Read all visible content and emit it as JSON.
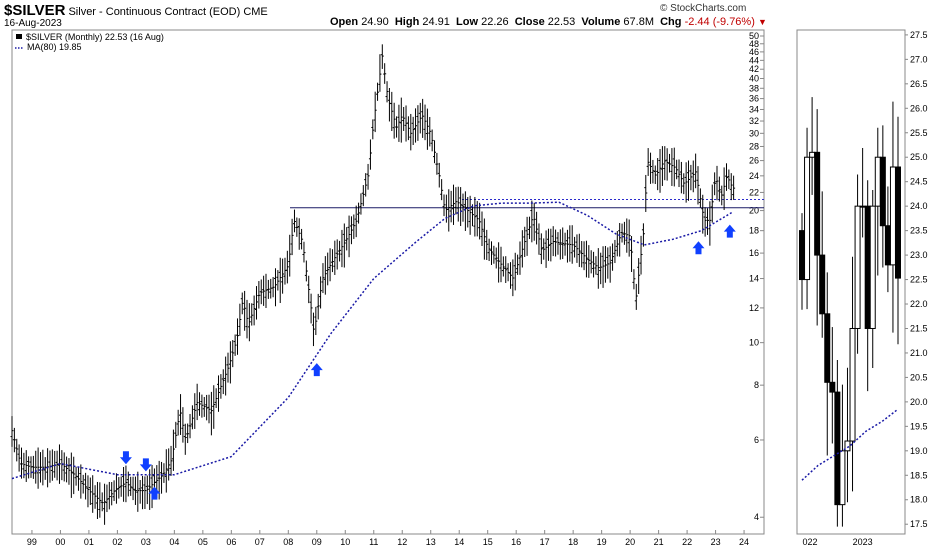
{
  "header": {
    "symbol": "$SILVER",
    "description": "Silver - Continuous Contract (EOD)",
    "exchange": "CME",
    "date": "16-Aug-2023",
    "logo": "© StockCharts.com",
    "open_label": "Open",
    "open": "24.90",
    "high_label": "High",
    "high": "24.91",
    "low_label": "Low",
    "low": "22.26",
    "close_label": "Close",
    "close": "22.53",
    "volume_label": "Volume",
    "volume": "67.8M",
    "chg_label": "Chg",
    "chg": "-2.44 (-9.76%)",
    "chg_color": "#c00000"
  },
  "legend": {
    "series1": "$SILVER (Monthly) 22.53 (16 Aug)",
    "series2": "MA(80) 19.85"
  },
  "colors": {
    "price": "#000000",
    "ma": "#1a1aa6",
    "arrow": "#1040ff",
    "hline": "#1a1a66"
  },
  "chart_data": [
    {
      "type": "line",
      "title": "$SILVER Monthly (log scale)",
      "scale": "log",
      "ylim": [
        3.8,
        50
      ],
      "y_ticks": [
        4,
        6,
        8,
        10,
        12,
        14,
        16,
        18,
        20,
        22,
        24,
        26,
        28,
        30,
        32,
        34,
        36,
        38,
        40,
        42,
        44,
        46,
        48,
        50
      ],
      "x_ticks": [
        "99",
        "00",
        "01",
        "02",
        "03",
        "04",
        "05",
        "06",
        "07",
        "08",
        "09",
        "10",
        "11",
        "12",
        "13",
        "14",
        "15",
        "16",
        "17",
        "18",
        "19",
        "20",
        "21",
        "22",
        "23",
        "24"
      ],
      "xlim": [
        1998.3,
        2024.7
      ],
      "series": [
        {
          "name": "$SILVER (Monthly)",
          "x": [
            1998.3,
            1998.6,
            1999,
            1999.5,
            2000,
            2000.5,
            2001,
            2001.5,
            2001.9,
            2002.3,
            2002.6,
            2003,
            2003.3,
            2003.6,
            2003.9,
            2004.2,
            2004.4,
            2004.8,
            2005.3,
            2005.9,
            2006.2,
            2006.4,
            2006.6,
            2007,
            2007.5,
            2008,
            2008.2,
            2008.5,
            2008.8,
            2008.9,
            2009.2,
            2009.6,
            2010,
            2010.4,
            2010.8,
            2011,
            2011.3,
            2011.5,
            2011.8,
            2012,
            2012.3,
            2012.7,
            2013,
            2013.3,
            2013.5,
            2013.9,
            2014.3,
            2014.7,
            2015,
            2015.5,
            2015.9,
            2016.3,
            2016.6,
            2016.9,
            2017.3,
            2017.7,
            2018,
            2018.5,
            2018.9,
            2019.3,
            2019.7,
            2020,
            2020.2,
            2020.5,
            2020.6,
            2020.9,
            2021.2,
            2021.6,
            2021.9,
            2022.3,
            2022.6,
            2022.8,
            2023,
            2023.2,
            2023.4,
            2023.6
          ],
          "y": [
            6.3,
            5.3,
            5.2,
            5.2,
            5.3,
            5.0,
            4.6,
            4.3,
            4.6,
            4.8,
            4.6,
            4.6,
            4.8,
            5.0,
            5.4,
            7.0,
            6.0,
            7.3,
            7.0,
            8.8,
            10.2,
            12.5,
            11.0,
            13.0,
            13.4,
            15.0,
            19.0,
            17.0,
            12.0,
            10.5,
            14.0,
            15.5,
            17.0,
            19.0,
            24.0,
            32.0,
            45.0,
            36.0,
            31.0,
            33.0,
            30.0,
            33.0,
            30.0,
            24.0,
            20.0,
            21.0,
            20.0,
            19.0,
            16.5,
            15.0,
            14.0,
            17.0,
            19.5,
            16.2,
            17.0,
            16.8,
            16.7,
            15.5,
            14.8,
            15.2,
            17.8,
            17.5,
            12.5,
            18.5,
            26.0,
            24.0,
            26.0,
            25.0,
            23.0,
            24.5,
            19.0,
            19.0,
            24.0,
            21.5,
            24.0,
            22.5
          ]
        },
        {
          "name": "MA(80)",
          "x": [
            1998.3,
            2000,
            2002,
            2004,
            2006,
            2008,
            2009.5,
            2011,
            2012.5,
            2013.5,
            2014.5,
            2015.5,
            2016.5,
            2017.5,
            2018.5,
            2019.5,
            2020.5,
            2021.5,
            2022.5,
            2023.6
          ],
          "y": [
            4.9,
            5.3,
            5.0,
            5.0,
            5.5,
            7.5,
            10.5,
            14.0,
            17.0,
            19.2,
            20.5,
            20.8,
            20.8,
            20.9,
            19.5,
            17.7,
            16.7,
            17.2,
            18.0,
            19.85
          ]
        }
      ],
      "horizontal_lines": [
        {
          "y": 20.3,
          "style": "solid"
        },
        {
          "y": 21.2,
          "style": "dotted"
        }
      ],
      "annotations": [
        {
          "type": "arrow-down",
          "x": 2002.3,
          "y": 5.45
        },
        {
          "type": "arrow-down",
          "x": 2003.0,
          "y": 5.25
        },
        {
          "type": "arrow-up",
          "x": 2003.3,
          "y": 4.55
        },
        {
          "type": "arrow-up",
          "x": 2009.0,
          "y": 8.7
        },
        {
          "type": "arrow-up",
          "x": 2022.4,
          "y": 16.5
        },
        {
          "type": "arrow-up",
          "x": 2023.5,
          "y": 18.0
        }
      ]
    },
    {
      "type": "line",
      "title": "$SILVER Monthly (zoom)",
      "scale": "linear",
      "ylim": [
        17.3,
        27.6
      ],
      "y_ticks": [
        17.5,
        18.0,
        18.5,
        19.0,
        19.5,
        20.0,
        20.5,
        21.0,
        21.5,
        22.0,
        22.5,
        23.0,
        23.5,
        24.0,
        24.5,
        25.0,
        25.5,
        26.0,
        26.5,
        27.0,
        27.5
      ],
      "x_ticks": [
        "022",
        "2023"
      ],
      "series": [
        {
          "name": "$SILVER (Monthly)",
          "x": [
            "2022-01",
            "2022-02",
            "2022-03",
            "2022-04",
            "2022-05",
            "2022-06",
            "2022-07",
            "2022-08",
            "2022-09",
            "2022-10",
            "2022-11",
            "2022-12",
            "2023-01",
            "2023-02",
            "2023-03",
            "2023-04",
            "2023-05",
            "2023-06",
            "2023-07",
            "2023-08"
          ],
          "y": [
            22.5,
            25.0,
            25.1,
            23.0,
            21.8,
            20.4,
            20.2,
            17.9,
            19.0,
            19.2,
            21.5,
            24.0,
            24.0,
            21.5,
            24.0,
            25.0,
            23.6,
            22.8,
            24.8,
            22.53
          ]
        },
        {
          "name": "MA(80)",
          "x": [
            "2022-01",
            "2022-04",
            "2022-07",
            "2022-10",
            "2023-01",
            "2023-04",
            "2023-08"
          ],
          "y": [
            18.4,
            18.7,
            18.9,
            19.1,
            19.4,
            19.6,
            19.85
          ]
        }
      ]
    }
  ]
}
